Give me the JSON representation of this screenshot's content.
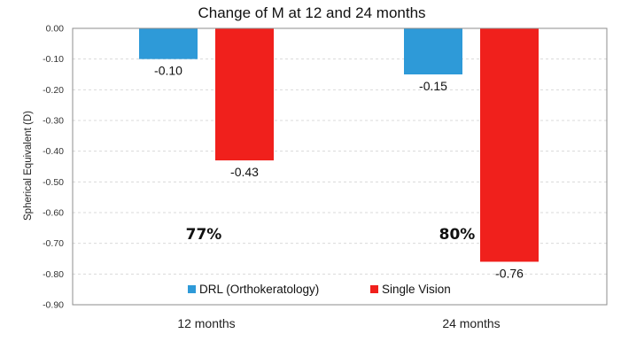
{
  "chart_data": {
    "type": "bar",
    "title": "Change of M at 12  and 24 months",
    "xlabel": "",
    "ylabel": "Spherical Equivalent (D)",
    "categories": [
      "12 months",
      "24 months"
    ],
    "series": [
      {
        "name": "DRL (Orthokeratology)",
        "color": "#2e9ad8",
        "values": [
          -0.1,
          -0.15
        ],
        "labels": [
          "-0.10",
          "-0.15"
        ]
      },
      {
        "name": "Single Vision",
        "color": "#f0201c",
        "values": [
          -0.43,
          -0.76
        ],
        "labels": [
          "-0.43",
          "-0.76"
        ]
      }
    ],
    "ylim": [
      -0.9,
      0.0
    ],
    "yticks": [
      0.0,
      -0.1,
      -0.2,
      -0.3,
      -0.4,
      -0.5,
      -0.6,
      -0.7,
      -0.8,
      -0.9
    ],
    "ytick_labels": [
      "0.00",
      "-0.10",
      "-0.20",
      "-0.30",
      "-0.40",
      "-0.50",
      "-0.60",
      "-0.70",
      "-0.80",
      "-0.90"
    ],
    "annotations": [
      "77%",
      "80%"
    ],
    "grid": true,
    "gridline_color": "#d9d9d9",
    "legend_position": "bottom-center"
  }
}
